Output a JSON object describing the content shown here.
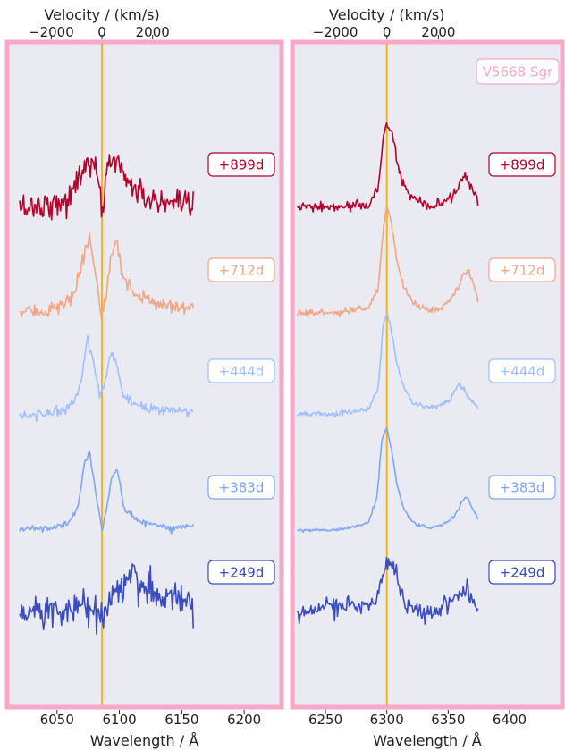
{
  "chart_data": [
    {
      "type": "line",
      "panel": "left",
      "xlabel": "Wavelength / Å",
      "x2label": "Velocity / (km/s)",
      "xlim": [
        6010,
        6230
      ],
      "xticks": [
        6050,
        6100,
        6150,
        6200
      ],
      "xtick_labels": [
        "6050",
        "6100",
        "6150",
        "6200"
      ],
      "vel_ticks": [
        -2000,
        0,
        2000
      ],
      "vel_tick_labels": [
        "−2000",
        "0",
        "2000"
      ],
      "rest_wavelength": 6086,
      "reference_line": 6086,
      "y_visible": false,
      "grid": false,
      "background": "#eaeaf2",
      "frame_color": "#f7a8c8",
      "reference_color": "#f2b31c",
      "target_label": "",
      "series": [
        {
          "name": "+899d",
          "color": "#b5022c",
          "noise": 0.55,
          "baseline_step": 0.0,
          "x": [
            6020,
            6040,
            6060,
            6068,
            6075,
            6082,
            6086,
            6090,
            6097,
            6105,
            6115,
            6130,
            6145,
            6160
          ],
          "y": [
            0.0,
            0.1,
            0.3,
            1.4,
            2.0,
            1.5,
            -0.3,
            1.8,
            2.1,
            1.3,
            0.6,
            0.2,
            0.0,
            0.0
          ]
        },
        {
          "name": "+712d",
          "color": "#f4a582",
          "noise": 0.28,
          "baseline_step": 0.0,
          "x": [
            6020,
            6040,
            6055,
            6065,
            6072,
            6076,
            6080,
            6086,
            6090,
            6094,
            6098,
            6103,
            6110,
            6125,
            6140,
            6160
          ],
          "y": [
            0.0,
            0.1,
            0.3,
            0.9,
            2.6,
            3.1,
            2.0,
            -0.3,
            1.2,
            2.6,
            3.0,
            1.6,
            0.9,
            0.5,
            0.3,
            0.3
          ]
        },
        {
          "name": "+444d",
          "color": "#9fbfff",
          "noise": 0.2,
          "baseline_step": 0.0,
          "x": [
            6020,
            6040,
            6060,
            6068,
            6074,
            6078,
            6084,
            6088,
            6093,
            6097,
            6102,
            6110,
            6125,
            6160
          ],
          "y": [
            0.0,
            0.0,
            0.3,
            1.0,
            3.2,
            2.6,
            0.8,
            1.3,
            2.6,
            2.4,
            0.9,
            0.4,
            0.2,
            0.1
          ]
        },
        {
          "name": "+383d",
          "color": "#7ea6f6",
          "noise": 0.12,
          "baseline_step": 0.0,
          "x": [
            6020,
            6045,
            6060,
            6067,
            6072,
            6076,
            6081,
            6086,
            6090,
            6094,
            6098,
            6104,
            6115,
            6140,
            6160
          ],
          "y": [
            0.0,
            0.1,
            0.3,
            1.0,
            2.9,
            3.4,
            1.6,
            0.0,
            1.0,
            2.3,
            2.6,
            0.9,
            0.4,
            0.1,
            0.2
          ]
        },
        {
          "name": "+249d",
          "color": "#3b4cc0",
          "noise": 0.65,
          "baseline_step": 0.0,
          "x": [
            6020,
            6060,
            6080,
            6086,
            6095,
            6105,
            6112,
            6120,
            6135,
            6160
          ],
          "y": [
            0.0,
            0.3,
            0.3,
            0.0,
            0.6,
            1.4,
            1.8,
            1.2,
            0.7,
            0.6
          ]
        }
      ]
    },
    {
      "type": "line",
      "panel": "right",
      "xlabel": "Wavelength / Å",
      "x2label": "Velocity / (km/s)",
      "xlim": [
        6223,
        6443
      ],
      "xticks": [
        6250,
        6300,
        6350,
        6400
      ],
      "xtick_labels": [
        "6250",
        "6300",
        "6350",
        "6400"
      ],
      "vel_ticks": [
        -2000,
        0,
        2000
      ],
      "vel_tick_labels": [
        "−2000",
        "0",
        "2000"
      ],
      "rest_wavelength": 6300,
      "reference_line": 6300,
      "y_visible": false,
      "grid": false,
      "background": "#eaeaf2",
      "frame_color": "#f7a8c8",
      "reference_color": "#f2b31c",
      "target_label": "V5668 Sgr",
      "series": [
        {
          "name": "+899d",
          "color": "#b5022c",
          "noise": 0.2,
          "baseline_step": 0.0,
          "x": [
            6227,
            6260,
            6285,
            6293,
            6297,
            6300,
            6304,
            6308,
            6314,
            6322,
            6335,
            6345,
            6355,
            6362,
            6366,
            6370,
            6375
          ],
          "y": [
            0.0,
            0.0,
            0.1,
            0.8,
            3.0,
            3.7,
            3.2,
            2.0,
            0.9,
            0.3,
            0.0,
            0.1,
            0.6,
            1.3,
            1.2,
            0.6,
            0.4
          ]
        },
        {
          "name": "+712d",
          "color": "#f4a582",
          "noise": 0.12,
          "baseline_step": 0.0,
          "x": [
            6227,
            6260,
            6285,
            6293,
            6297,
            6300,
            6304,
            6308,
            6314,
            6322,
            6335,
            6345,
            6355,
            6362,
            6367,
            6371,
            6375
          ],
          "y": [
            0.0,
            0.0,
            0.2,
            1.0,
            3.6,
            4.6,
            3.8,
            2.3,
            1.1,
            0.4,
            0.1,
            0.2,
            0.8,
            1.6,
            1.8,
            1.2,
            0.3
          ]
        },
        {
          "name": "+444d",
          "color": "#9fbfff",
          "noise": 0.1,
          "baseline_step": 0.0,
          "x": [
            6227,
            6260,
            6285,
            6293,
            6297,
            6300,
            6304,
            6308,
            6314,
            6322,
            6335,
            6345,
            6352,
            6358,
            6362,
            6368,
            6375
          ],
          "y": [
            0.0,
            0.0,
            0.2,
            1.1,
            3.9,
            4.3,
            3.5,
            2.2,
            1.1,
            0.4,
            0.3,
            0.4,
            0.6,
            1.3,
            1.1,
            0.6,
            0.2
          ]
        },
        {
          "name": "+383d",
          "color": "#7ea6f6",
          "noise": 0.07,
          "baseline_step": 0.0,
          "x": [
            6227,
            6260,
            6285,
            6292,
            6296,
            6300,
            6304,
            6308,
            6314,
            6322,
            6335,
            6345,
            6355,
            6362,
            6366,
            6370,
            6375
          ],
          "y": [
            0.0,
            0.0,
            0.3,
            1.4,
            3.9,
            4.4,
            3.4,
            2.0,
            0.9,
            0.3,
            0.1,
            0.2,
            0.6,
            1.3,
            1.4,
            0.9,
            0.4
          ]
        },
        {
          "name": "+249d",
          "color": "#3b4cc0",
          "noise": 0.4,
          "baseline_step": 0.0,
          "x": [
            6227,
            6255,
            6280,
            6292,
            6298,
            6302,
            6306,
            6312,
            6320,
            6335,
            6350,
            6360,
            6365,
            6372,
            6375
          ],
          "y": [
            0.0,
            0.4,
            0.3,
            0.8,
            2.0,
            2.4,
            2.0,
            0.9,
            0.3,
            0.0,
            0.5,
            0.9,
            1.1,
            0.5,
            0.3
          ]
        }
      ]
    }
  ]
}
